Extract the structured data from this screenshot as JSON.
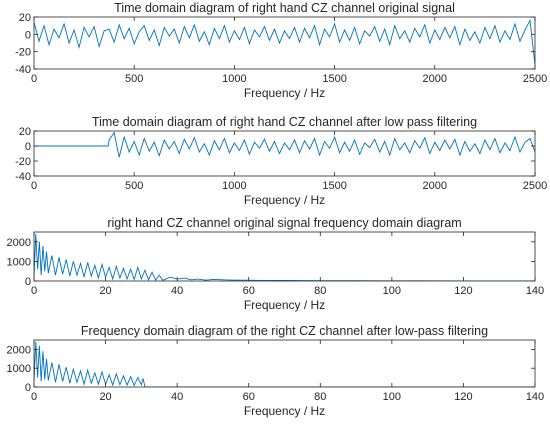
{
  "colors": {
    "line": "#0072bd",
    "axis": "#262626",
    "background": "#ffffff"
  },
  "chart_data": [
    {
      "type": "line",
      "title": "Time domain diagram of right hand CZ channel original signal",
      "xlabel": "Frequency / Hz",
      "ylabel": "",
      "xlim": [
        0,
        2500
      ],
      "ylim": [
        -40,
        20
      ],
      "xticks": [
        0,
        500,
        1000,
        1500,
        2000,
        2500
      ],
      "yticks": [
        -40,
        -20,
        0,
        20
      ],
      "xtick_labels": [
        "0",
        "500",
        "1000",
        "1500",
        "2000",
        "2500"
      ],
      "ytick_labels": [
        "-40",
        "-20",
        "0",
        "20"
      ],
      "grid": false,
      "series": [
        {
          "x": [
            0,
            25,
            50,
            75,
            100,
            125,
            150,
            175,
            200,
            225,
            250,
            275,
            300,
            325,
            350,
            375,
            400,
            425,
            450,
            475,
            500,
            525,
            550,
            575,
            600,
            625,
            650,
            675,
            700,
            725,
            750,
            775,
            800,
            825,
            850,
            875,
            900,
            925,
            950,
            975,
            1000,
            1025,
            1050,
            1075,
            1100,
            1125,
            1150,
            1175,
            1200,
            1225,
            1250,
            1275,
            1300,
            1325,
            1350,
            1375,
            1400,
            1425,
            1450,
            1475,
            1500,
            1525,
            1550,
            1575,
            1600,
            1625,
            1650,
            1675,
            1700,
            1725,
            1750,
            1775,
            1800,
            1825,
            1850,
            1875,
            1900,
            1925,
            1950,
            1975,
            2000,
            2025,
            2050,
            2075,
            2100,
            2125,
            2150,
            2175,
            2200,
            2225,
            2250,
            2275,
            2300,
            2325,
            2350,
            2375,
            2400,
            2425,
            2450,
            2475,
            2500
          ],
          "y": [
            14,
            -8,
            10,
            -12,
            6,
            -4,
            12,
            -10,
            5,
            -15,
            8,
            -3,
            9,
            -14,
            4,
            6,
            -9,
            11,
            -5,
            7,
            -11,
            3,
            10,
            -7,
            5,
            -13,
            8,
            -2,
            6,
            -10,
            9,
            -4,
            11,
            -8,
            3,
            -12,
            7,
            -5,
            10,
            -9,
            4,
            -6,
            8,
            -11,
            5,
            -3,
            9,
            -7,
            6,
            -10,
            4,
            -5,
            8,
            -9,
            7,
            -4,
            10,
            -12,
            6,
            -3,
            12,
            -9,
            5,
            -7,
            8,
            -11,
            4,
            -2,
            9,
            -8,
            6,
            -12,
            10,
            -5,
            4,
            -9,
            7,
            -3,
            11,
            -10,
            5,
            -6,
            8,
            -4,
            9,
            -12,
            6,
            -7,
            3,
            -10,
            8,
            -5,
            10,
            -9,
            4,
            -6,
            12,
            -8,
            5,
            16,
            -35
          ]
        }
      ]
    },
    {
      "type": "line",
      "title": "Time domain diagram of right hand CZ channel after low pass filtering",
      "xlabel": "Frequency / Hz",
      "ylabel": "",
      "xlim": [
        0,
        2500
      ],
      "ylim": [
        -40,
        20
      ],
      "xticks": [
        0,
        500,
        1000,
        1500,
        2000,
        2500
      ],
      "yticks": [
        -40,
        -20,
        0,
        20
      ],
      "xtick_labels": [
        "0",
        "500",
        "1000",
        "1500",
        "2000",
        "2500"
      ],
      "ytick_labels": [
        "-40",
        "-20",
        "0",
        "20"
      ],
      "grid": false,
      "series": [
        {
          "x": [
            0,
            370,
            375,
            400,
            425,
            450,
            475,
            500,
            525,
            550,
            575,
            600,
            625,
            650,
            675,
            700,
            725,
            750,
            775,
            800,
            825,
            850,
            875,
            900,
            925,
            950,
            975,
            1000,
            1025,
            1050,
            1075,
            1100,
            1125,
            1150,
            1175,
            1200,
            1225,
            1250,
            1275,
            1300,
            1325,
            1350,
            1375,
            1400,
            1425,
            1450,
            1475,
            1500,
            1525,
            1550,
            1575,
            1600,
            1625,
            1650,
            1675,
            1700,
            1725,
            1750,
            1775,
            1800,
            1825,
            1850,
            1875,
            1900,
            1925,
            1950,
            1975,
            2000,
            2025,
            2050,
            2075,
            2100,
            2125,
            2150,
            2175,
            2200,
            2225,
            2250,
            2275,
            2300,
            2325,
            2350,
            2375,
            2400,
            2425,
            2450,
            2475,
            2500
          ],
          "y": [
            0,
            0,
            8,
            18,
            -15,
            12,
            -8,
            6,
            -12,
            10,
            -7,
            5,
            -13,
            8,
            -4,
            6,
            -10,
            9,
            -4,
            11,
            -8,
            3,
            -12,
            7,
            -5,
            10,
            -9,
            4,
            -6,
            8,
            -11,
            5,
            -3,
            9,
            -7,
            6,
            -10,
            4,
            -5,
            8,
            -9,
            7,
            -4,
            10,
            -12,
            6,
            -3,
            12,
            -9,
            5,
            -7,
            8,
            -11,
            4,
            -2,
            9,
            -8,
            6,
            -12,
            10,
            -5,
            4,
            -9,
            7,
            -3,
            11,
            -10,
            5,
            -6,
            8,
            -4,
            9,
            -12,
            6,
            -7,
            3,
            -10,
            8,
            -5,
            10,
            -9,
            4,
            -6,
            12,
            -8,
            5,
            10,
            -8
          ]
        }
      ]
    },
    {
      "type": "line",
      "title": "right hand CZ channel original signal frequency domain diagram",
      "xlabel": "Frequency / Hz",
      "ylabel": "",
      "xlim": [
        0,
        140
      ],
      "ylim": [
        0,
        2500
      ],
      "xticks": [
        0,
        20,
        40,
        60,
        80,
        100,
        120,
        140
      ],
      "yticks": [
        0,
        1000,
        2000
      ],
      "xtick_labels": [
        "0",
        "20",
        "40",
        "60",
        "80",
        "100",
        "120",
        "140"
      ],
      "ytick_labels": [
        "0",
        "1000",
        "2000"
      ],
      "grid": false,
      "series": [
        {
          "x": [
            0,
            0.5,
            1,
            1.5,
            2,
            2.5,
            3,
            3.5,
            4,
            5,
            6,
            7,
            8,
            9,
            10,
            11,
            12,
            13,
            14,
            15,
            16,
            17,
            18,
            19,
            20,
            21,
            22,
            23,
            24,
            25,
            26,
            27,
            28,
            29,
            30,
            31,
            32,
            33,
            34,
            35,
            36,
            38,
            40,
            42,
            44,
            46,
            48,
            50,
            55,
            60,
            65,
            70,
            80,
            90,
            100,
            110,
            120,
            130,
            140
          ],
          "y": [
            200,
            2400,
            600,
            2000,
            300,
            1800,
            500,
            1500,
            400,
            1300,
            300,
            1200,
            350,
            1100,
            250,
            1000,
            300,
            900,
            200,
            950,
            250,
            800,
            150,
            850,
            200,
            700,
            100,
            750,
            150,
            650,
            100,
            600,
            80,
            700,
            100,
            550,
            60,
            450,
            40,
            300,
            30,
            200,
            100,
            150,
            60,
            100,
            40,
            80,
            50,
            40,
            30,
            25,
            15,
            12,
            8,
            6,
            4,
            3,
            2
          ]
        }
      ]
    },
    {
      "type": "line",
      "title": "Frequency domain diagram of the right CZ channel after low-pass filtering",
      "xlabel": "Frequency / Hz",
      "ylabel": "",
      "xlim": [
        0,
        140
      ],
      "ylim": [
        0,
        2500
      ],
      "xticks": [
        0,
        20,
        40,
        60,
        80,
        100,
        120,
        140
      ],
      "yticks": [
        0,
        1000,
        2000
      ],
      "xtick_labels": [
        "0",
        "20",
        "40",
        "60",
        "80",
        "100",
        "120",
        "140"
      ],
      "ytick_labels": [
        "0",
        "1000",
        "2000"
      ],
      "grid": false,
      "series": [
        {
          "x": [
            0,
            0.5,
            1,
            1.5,
            2,
            2.5,
            3,
            3.5,
            4,
            5,
            6,
            7,
            8,
            9,
            10,
            11,
            12,
            13,
            14,
            15,
            16,
            17,
            18,
            19,
            20,
            21,
            22,
            23,
            24,
            25,
            26,
            27,
            28,
            29,
            30,
            30.5,
            31,
            40,
            60,
            80,
            100,
            120,
            140
          ],
          "y": [
            300,
            2400,
            500,
            2200,
            300,
            1900,
            400,
            1500,
            350,
            1300,
            250,
            1200,
            300,
            1050,
            200,
            950,
            250,
            850,
            150,
            900,
            200,
            750,
            150,
            800,
            150,
            650,
            100,
            700,
            120,
            600,
            100,
            550,
            80,
            500,
            120,
            450,
            0,
            0,
            0,
            0,
            0,
            0,
            0
          ]
        }
      ]
    }
  ]
}
